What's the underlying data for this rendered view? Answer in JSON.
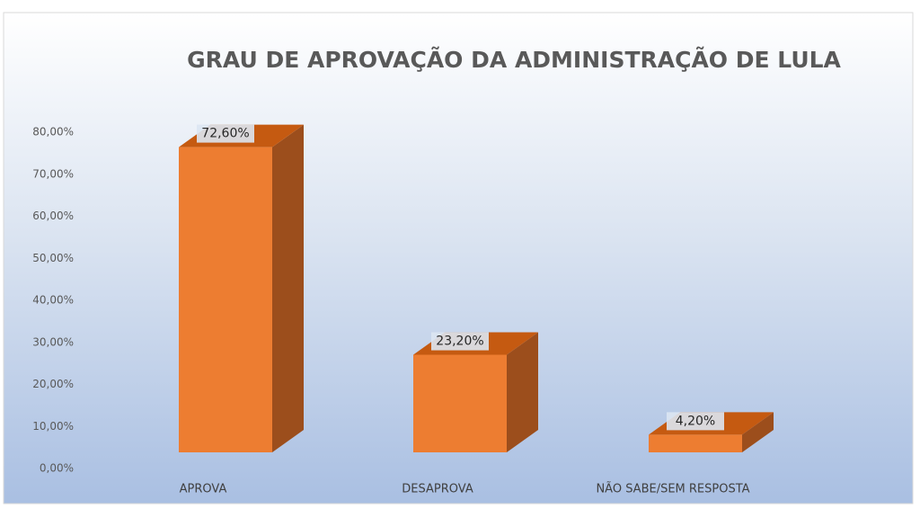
{
  "chart_data": {
    "type": "bar3d",
    "title": "GRAU DE APROVAÇÃO DA ADMINISTRAÇÃO DE LULA",
    "categories": [
      "APROVA",
      "DESAPROVA",
      "NÃO SABE/SEM RESPOSTA"
    ],
    "values": [
      72.6,
      23.2,
      4.2
    ],
    "value_labels": [
      "72,60%",
      "23,20%",
      "4,20%"
    ],
    "color": "#ed7d31",
    "ylim": [
      0,
      80
    ],
    "yticks": [
      {
        "value": 0,
        "label": "0,00%"
      },
      {
        "value": 10,
        "label": "10,00%"
      },
      {
        "value": 20,
        "label": "20,00%"
      },
      {
        "value": 30,
        "label": "30,00%"
      },
      {
        "value": 40,
        "label": "40,00%"
      },
      {
        "value": 50,
        "label": "50,00%"
      },
      {
        "value": 60,
        "label": "60,00%"
      },
      {
        "value": 70,
        "label": "70,00%"
      },
      {
        "value": 80,
        "label": "80,00%"
      }
    ]
  }
}
